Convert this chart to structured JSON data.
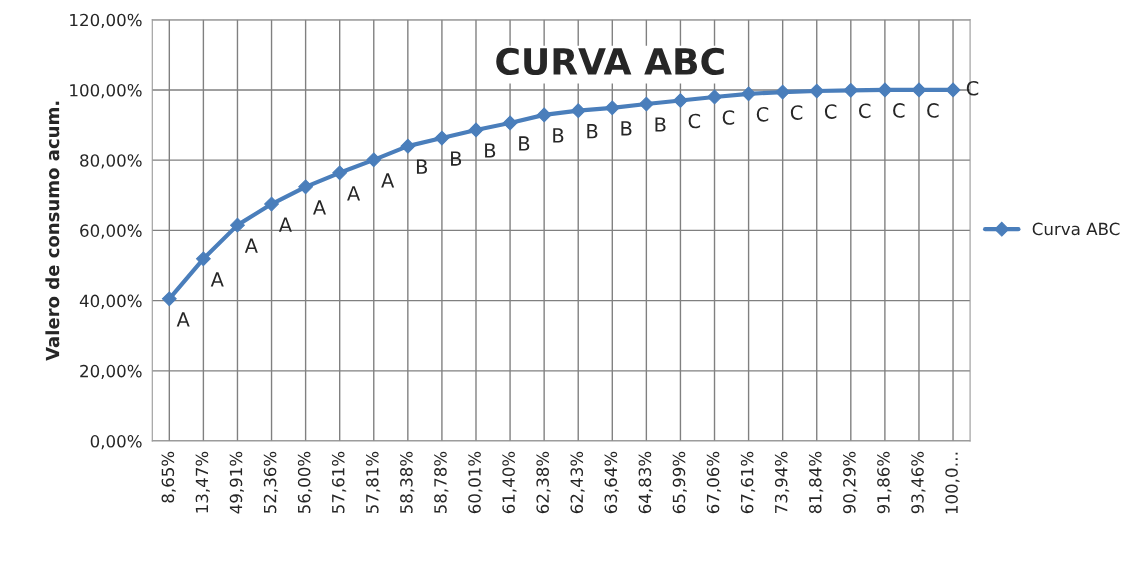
{
  "chart_data": {
    "type": "line",
    "title": "CURVA ABC",
    "ylabel": "Valero de consumo acum.",
    "categories": [
      "8,65%",
      "13,47%",
      "49,91%",
      "52,36%",
      "56,00%",
      "57,61%",
      "57,81%",
      "58,38%",
      "58,78%",
      "60,01%",
      "61,40%",
      "62,38%",
      "62,43%",
      "63,64%",
      "64,83%",
      "65,99%",
      "67,06%",
      "67,61%",
      "73,94%",
      "81,84%",
      "90,29%",
      "91,86%",
      "93,46%",
      "100,0…"
    ],
    "series": [
      {
        "name": "Curva ABC",
        "color": "#4a7ebb",
        "values": [
          40.5,
          51.9,
          61.5,
          67.5,
          72.4,
          76.4,
          80.1,
          84.0,
          86.3,
          88.6,
          90.6,
          92.9,
          94.1,
          94.9,
          96.0,
          97.0,
          98.0,
          98.9,
          99.4,
          99.7,
          99.9,
          100,
          100,
          100
        ]
      }
    ],
    "ylim": [
      0,
      120
    ],
    "yticks": [
      {
        "value": 0,
        "label": "0,00%"
      },
      {
        "value": 20,
        "label": "20,00%"
      },
      {
        "value": 40,
        "label": "40,00%"
      },
      {
        "value": 60,
        "label": "60,00%"
      },
      {
        "value": 80,
        "label": "80,00%"
      },
      {
        "value": 100,
        "label": "100,00%"
      },
      {
        "value": 120,
        "label": "120,00%"
      }
    ],
    "annotations": [
      {
        "text": "A",
        "x": "8,65%",
        "y": 40.5
      },
      {
        "text": "A",
        "x": "13,47%",
        "y": 51.9
      },
      {
        "text": "A",
        "x": "49,91%",
        "y": 61.5
      },
      {
        "text": "A",
        "x": "52,36%",
        "y": 67.5
      },
      {
        "text": "A",
        "x": "56,00%",
        "y": 72.4
      },
      {
        "text": "A",
        "x": "57,61%",
        "y": 76.4
      },
      {
        "text": "A",
        "x": "57,81%",
        "y": 80.1
      },
      {
        "text": "B",
        "x": "58,38%",
        "y": 84.0
      },
      {
        "text": "B",
        "x": "58,78%",
        "y": 86.3
      },
      {
        "text": "B",
        "x": "60,01%",
        "y": 88.6
      },
      {
        "text": "B",
        "x": "61,40%",
        "y": 90.6
      },
      {
        "text": "B",
        "x": "62,38%",
        "y": 92.9
      },
      {
        "text": "B",
        "x": "62,43%",
        "y": 94.1
      },
      {
        "text": "B",
        "x": "63,64%",
        "y": 94.9
      },
      {
        "text": "B",
        "x": "64,83%",
        "y": 96.0
      },
      {
        "text": "C",
        "x": "65,99%",
        "y": 97.0
      },
      {
        "text": "C",
        "x": "67,06%",
        "y": 98.0
      },
      {
        "text": "C",
        "x": "67,61%",
        "y": 98.9
      },
      {
        "text": "C",
        "x": "73,94%",
        "y": 99.4
      },
      {
        "text": "C",
        "x": "81,84%",
        "y": 99.7
      },
      {
        "text": "C",
        "x": "90,29%",
        "y": 99.9
      },
      {
        "text": "C",
        "x": "91,86%",
        "y": 100
      },
      {
        "text": "C",
        "x": "93,46%",
        "y": 100
      },
      {
        "text": "C",
        "x": "100,0…",
        "y": 100
      }
    ],
    "grid": true,
    "legend": "right",
    "marker": "diamond",
    "line_style": "solid"
  }
}
